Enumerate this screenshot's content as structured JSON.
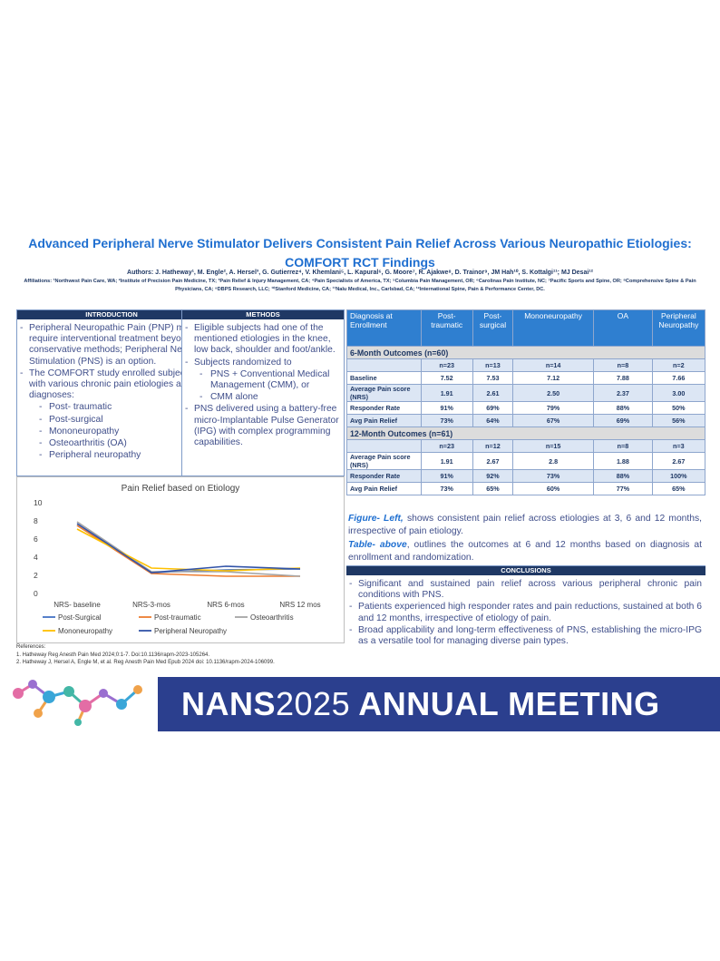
{
  "title": "Advanced Peripheral Nerve Stimulator Delivers Consistent Pain Relief Across Various Neuropathic Etiologies: COMFORT RCT Findings",
  "authors": "Authors: J. Hatheway¹, M. Engle², A. Hersel³, G. Gutierrez⁴, V. Khemlani⁵, L. Kapural⁶, G. Moore⁷, R. Ajakwe⁸, D. Trainor⁹, JM Hah¹⁰, S. Kottalgi¹¹; MJ Desai¹²",
  "affiliations": "Affiliations: ¹Northwest Pain Care, WA; ²Institute of Precision Pain Medicine, TX; ³Pain Relief & Injury Management, CA; ⁴Pain Specialists of America, TX; ⁵Columbia Pain Management, OR; ⁶Carolinas Pain Institute, NC; ⁷Pacific Sports and Spine, OR; ⁸Comprehensive Spine & Pain Physicians, CA; ⁹DBPS Research, LLC; ¹⁰Stanford Medicine, CA; ¹¹Nalu Medical, Inc., Carlsbad, CA; ¹²International Spine, Pain & Performance Center, DC.",
  "introduction": {
    "header": "INTRODUCTION",
    "items": [
      "Peripheral Neuropathic Pain (PNP) may require interventional treatment beyond conservative methods; Peripheral Nerve Stimulation (PNS) is an option.",
      "The COMFORT study enrolled subjects with various chronic pain etiologies and diagnoses:"
    ],
    "subitems": [
      "Post- traumatic",
      "Post-surgical",
      "Mononeuropathy",
      "Osteoarthritis (OA)",
      "Peripheral neuropathy"
    ]
  },
  "methods": {
    "header": "METHODS",
    "item1": "Eligible subjects had one of the mentioned etiologies in the knee, low back, shoulder and foot/ankle.",
    "item2": "Subjects randomized to",
    "subitems": [
      "PNS + Conventional Medical Management (CMM), or",
      "CMM alone"
    ],
    "item3": "PNS delivered using a battery-free micro-Implantable Pulse Generator (IPG) with complex programming capabilities."
  },
  "table": {
    "columns": [
      "Diagnosis at Enrollment",
      "Post-traumatic",
      "Post-surgical",
      "Mononeuropathy",
      "OA",
      "Peripheral Neuropathy"
    ],
    "section6": "6-Month Outcomes (n=60)",
    "rows6": [
      [
        "",
        "n=23",
        "n=13",
        "n=14",
        "n=8",
        "n=2"
      ],
      [
        "Baseline",
        "7.52",
        "7.53",
        "7.12",
        "7.88",
        "7.66"
      ],
      [
        "Average Pain score (NRS)",
        "1.91",
        "2.61",
        "2.50",
        "2.37",
        "3.00"
      ],
      [
        "Responder Rate",
        "91%",
        "69%",
        "79%",
        "88%",
        "50%"
      ],
      [
        "Avg Pain Relief",
        "73%",
        "64%",
        "67%",
        "69%",
        "56%"
      ]
    ],
    "section12": "12-Month Outcomes (n=61)",
    "rows12": [
      [
        "",
        "n=23",
        "n=12",
        "n=15",
        "n=8",
        "n=3"
      ],
      [
        "Average Pain score (NRS)",
        "1.91",
        "2.67",
        "2.8",
        "1.88",
        "2.67"
      ],
      [
        "Responder Rate",
        "91%",
        "92%",
        "73%",
        "88%",
        "100%"
      ],
      [
        "Avg Pain Relief",
        "73%",
        "65%",
        "60%",
        "77%",
        "65%"
      ]
    ]
  },
  "caption": {
    "fig_label": "Figure- Left,",
    "fig_text": " shows consistent pain relief across etiologies at 3, 6 and 12 months, irrespective of pain etiology.",
    "tab_label": "Table- above",
    "tab_text": ", outlines the outcomes at 6 and 12 months based on diagnosis at enrollment and randomization."
  },
  "conclusions": {
    "header": "CONCLUSIONS",
    "items": [
      "Significant and sustained pain relief across various peripheral chronic pain conditions with PNS.",
      "Patients experienced high responder rates and pain reductions, sustained at both 6 and 12 months, irrespective of etiology of pain.",
      "Broad applicability and long-term effectiveness of PNS, establishing the micro-IPG as a versatile tool for managing diverse pain types."
    ]
  },
  "references": {
    "label": "References:",
    "items": [
      "1.   Hatheway Reg Anesth Pain Med 2024;0:1-7. Doi:10.1136/rapm-2023-105264.",
      "2.   Hatheway J, Hersel A, Engle M, et al. Reg Anesth Pain Med Epub 2024 doi: 10.1136/rapm-2024-106099."
    ]
  },
  "banner": {
    "brand": "NANS",
    "year": "2025",
    "rest": " ANNUAL MEETING"
  },
  "chart_data": {
    "type": "line",
    "title": "Pain Relief based on Etiology",
    "categories": [
      "NRS- baseline",
      "NRS-3-mos",
      "NRS 6-mos",
      "NRS 12 mos"
    ],
    "ylim": [
      0,
      10
    ],
    "yticks": [
      0,
      2,
      4,
      6,
      8,
      10
    ],
    "grid": false,
    "legend_position": "bottom",
    "series": [
      {
        "name": "Post-Surgical",
        "color": "#4472c4",
        "values": [
          7.5,
          2.3,
          2.6,
          2.7
        ]
      },
      {
        "name": "Post-traumatic",
        "color": "#ed7d31",
        "values": [
          7.5,
          2.2,
          1.9,
          1.9
        ]
      },
      {
        "name": "Osteoarthritis",
        "color": "#a5a5a5",
        "values": [
          7.9,
          2.4,
          2.4,
          1.9
        ]
      },
      {
        "name": "Mononeuropathy",
        "color": "#ffc000",
        "values": [
          7.1,
          2.8,
          2.5,
          2.8
        ]
      },
      {
        "name": "Peripheral Neuropathy",
        "color": "#3153a8",
        "values": [
          7.7,
          2.3,
          3.0,
          2.7
        ]
      }
    ]
  }
}
